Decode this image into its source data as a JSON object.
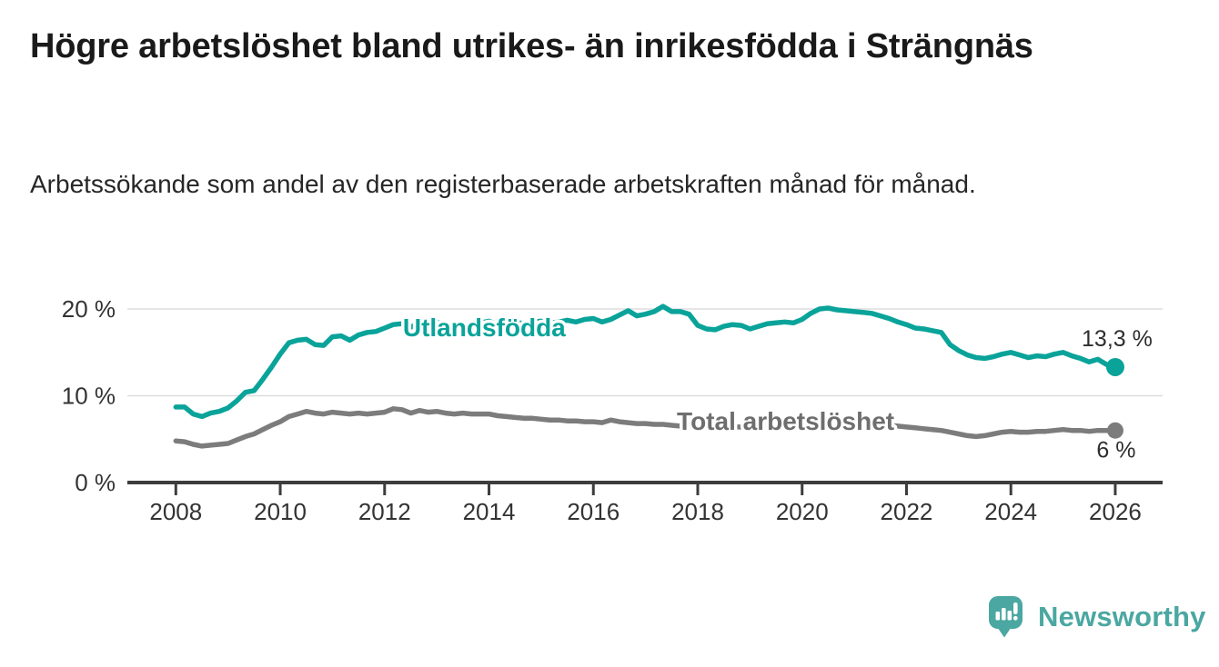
{
  "chart_data": {
    "type": "line",
    "title": "Högre arbetslöshet bland utrikes- än inrikesfödda i Strängnäs",
    "subtitle": "Arbetssökande som andel av den registerbaserade arbetskraften månad för månad.",
    "x_start": 2008,
    "x_step_months": 2,
    "grid_on": true,
    "grid_color": "#dedede",
    "axis_color": "#3d3d3d",
    "x_axis": {
      "ticks": [
        2008,
        2010,
        2012,
        2014,
        2016,
        2018,
        2020,
        2022,
        2024,
        2026
      ]
    },
    "y_axis": {
      "min": 0,
      "max": 21,
      "ticks": [
        {
          "value": 20,
          "label": "20 %"
        },
        {
          "value": 10,
          "label": "10 %"
        },
        {
          "value": 0,
          "label": "0 %"
        }
      ]
    },
    "series": [
      {
        "name": "Utlandsfödda",
        "color": "#0aa39a",
        "end_label": "13,3 %",
        "end_label_position": "above",
        "label_anchor": {
          "x": 2012.35,
          "y": 17.9
        },
        "values": [
          8.7,
          8.7,
          7.9,
          7.6,
          8.0,
          8.2,
          8.6,
          9.4,
          10.4,
          10.6,
          11.9,
          13.3,
          14.8,
          16.1,
          16.4,
          16.5,
          15.9,
          15.8,
          16.8,
          16.9,
          16.4,
          17.0,
          17.3,
          17.4,
          17.8,
          18.2,
          18.3,
          17.9,
          18.4,
          18.2,
          18.5,
          18.1,
          17.8,
          18.3,
          18.0,
          18.4,
          18.6,
          18.2,
          18.4,
          18.5,
          18.3,
          18.5,
          18.6,
          18.4,
          18.5,
          18.7,
          18.5,
          18.8,
          18.9,
          18.5,
          18.8,
          19.3,
          19.8,
          19.2,
          19.4,
          19.7,
          20.3,
          19.7,
          19.7,
          19.4,
          18.1,
          17.7,
          17.6,
          18.0,
          18.2,
          18.1,
          17.7,
          18.0,
          18.3,
          18.4,
          18.5,
          18.4,
          18.8,
          19.5,
          20.0,
          20.1,
          19.9,
          19.8,
          19.7,
          19.6,
          19.5,
          19.2,
          18.9,
          18.5,
          18.2,
          17.8,
          17.7,
          17.5,
          17.3,
          15.9,
          15.2,
          14.7,
          14.4,
          14.3,
          14.5,
          14.8,
          15.0,
          14.7,
          14.4,
          14.6,
          14.5,
          14.8,
          15.0,
          14.6,
          14.3,
          13.9,
          14.2,
          13.6,
          13.3
        ]
      },
      {
        "name": "Total arbetslöshet",
        "color": "#7c7c7c",
        "label_color": "#6e6e6e",
        "end_label": "6 %",
        "end_label_position": "below",
        "label_anchor": {
          "x": 2017.6,
          "y": 7.1
        },
        "values": [
          4.8,
          4.7,
          4.4,
          4.2,
          4.3,
          4.4,
          4.5,
          4.9,
          5.3,
          5.6,
          6.1,
          6.6,
          7.0,
          7.6,
          7.9,
          8.2,
          8.0,
          7.9,
          8.1,
          8.0,
          7.9,
          8.0,
          7.9,
          8.0,
          8.1,
          8.5,
          8.4,
          8.0,
          8.3,
          8.1,
          8.2,
          8.0,
          7.9,
          8.0,
          7.9,
          7.9,
          7.9,
          7.7,
          7.6,
          7.5,
          7.4,
          7.4,
          7.3,
          7.2,
          7.2,
          7.1,
          7.1,
          7.0,
          7.0,
          6.9,
          7.2,
          7.0,
          6.9,
          6.8,
          6.8,
          6.7,
          6.7,
          6.6,
          6.5,
          6.5,
          6.4,
          6.4,
          6.3,
          6.3,
          6.4,
          6.4,
          6.4,
          6.5,
          6.5,
          6.6,
          6.6,
          6.7,
          6.8,
          7.1,
          7.3,
          7.2,
          7.1,
          7.0,
          7.0,
          6.9,
          6.8,
          6.7,
          6.6,
          6.5,
          6.4,
          6.3,
          6.2,
          6.1,
          6.0,
          5.8,
          5.6,
          5.4,
          5.3,
          5.4,
          5.6,
          5.8,
          5.9,
          5.8,
          5.8,
          5.9,
          5.9,
          6.0,
          6.1,
          6.0,
          6.0,
          5.9,
          6.0,
          6.0,
          6.0
        ]
      }
    ]
  },
  "footer": {
    "brand": "Newsworthy",
    "brand_color": "#4ba7a1",
    "logo_icon": "bar-chart-speech-bubble-icon"
  }
}
